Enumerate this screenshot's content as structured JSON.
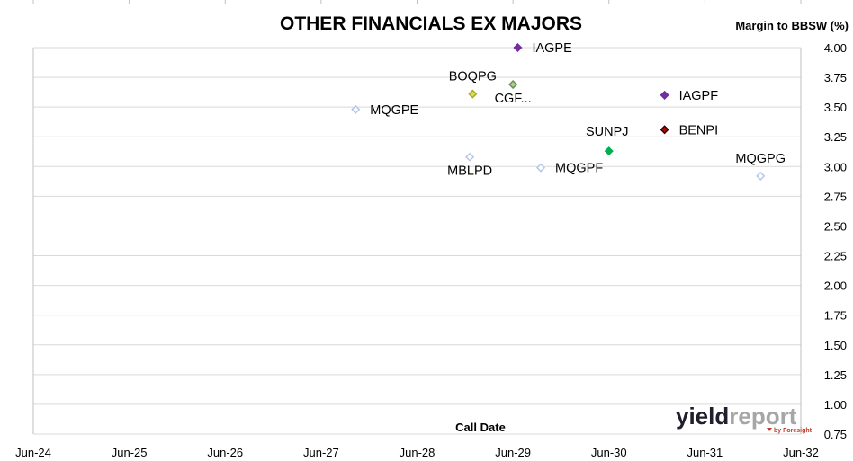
{
  "chart_data": {
    "type": "scatter",
    "title": "OTHER FINANCIALS EX MAJORS",
    "xlabel": "Call Date",
    "ylabel": "Margin to BBSW (%)",
    "x_ticks": [
      "Jun-24",
      "Jun-25",
      "Jun-26",
      "Jun-27",
      "Jun-28",
      "Jun-29",
      "Jun-30",
      "Jun-31",
      "Jun-32"
    ],
    "xlim": [
      2024.0,
      2032.0
    ],
    "ylim": [
      0.75,
      4.0
    ],
    "y_ticks": [
      "0.75",
      "1.00",
      "1.25",
      "1.50",
      "1.75",
      "2.00",
      "2.25",
      "2.50",
      "2.75",
      "3.00",
      "3.25",
      "3.50",
      "3.75",
      "4.00"
    ],
    "grid": true,
    "points": [
      {
        "label": "IAGPE",
        "x": 2029.05,
        "y": 4.0,
        "fill": "#7030a0",
        "stroke": "#7030a0",
        "label_pos": "right"
      },
      {
        "label": "BOQPG",
        "x": 2028.58,
        "y": 3.61,
        "fill": "#d4e157",
        "stroke": "#a8a820",
        "label_pos": "above"
      },
      {
        "label": "CGF...",
        "x": 2029.0,
        "y": 3.69,
        "fill": "#a9d18e",
        "stroke": "#6e8f5a",
        "label_pos": "below"
      },
      {
        "label": "MQGPE",
        "x": 2027.36,
        "y": 3.48,
        "fill": "#ffffff",
        "stroke": "#b4c7e7",
        "label_pos": "right"
      },
      {
        "label": "IAGPF",
        "x": 2030.58,
        "y": 3.6,
        "fill": "#7030a0",
        "stroke": "#7030a0",
        "label_pos": "right"
      },
      {
        "label": "BENPI",
        "x": 2030.58,
        "y": 3.31,
        "fill": "#c00000",
        "stroke": "#400000",
        "label_pos": "right"
      },
      {
        "label": "SUNPJ",
        "x": 2030.0,
        "y": 3.13,
        "fill": "#00b050",
        "stroke": "#00b050",
        "label_pos": "above-left"
      },
      {
        "label": "MBLPD",
        "x": 2028.55,
        "y": 3.08,
        "fill": "#ffffff",
        "stroke": "#b4c7e7",
        "label_pos": "below"
      },
      {
        "label": "MQGPF",
        "x": 2029.29,
        "y": 2.99,
        "fill": "#ffffff",
        "stroke": "#b4c7e7",
        "label_pos": "right"
      },
      {
        "label": "MQGPG",
        "x": 2031.58,
        "y": 2.92,
        "fill": "#ffffff",
        "stroke": "#b4c7e7",
        "label_pos": "above"
      }
    ]
  },
  "logo": {
    "text_main": "yield",
    "text_accent": "report",
    "text_sub": "by Foresight",
    "color_main": "#1f1f2e",
    "color_accent": "#a6a6a6"
  }
}
